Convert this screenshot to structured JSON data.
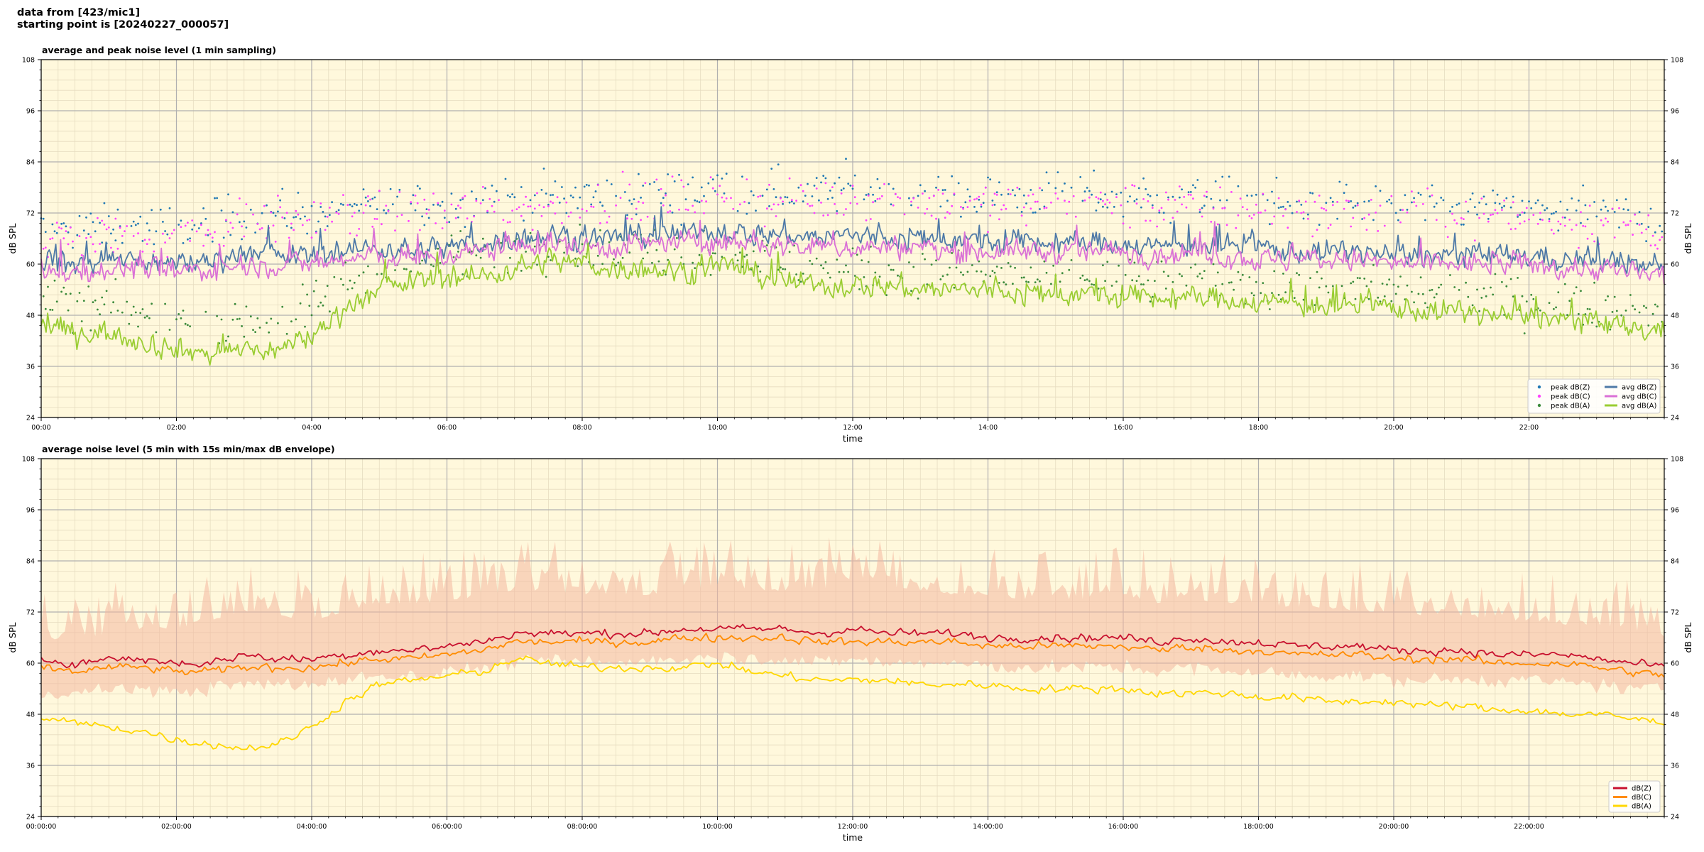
{
  "header": {
    "line1": "data from [423/mic1]",
    "line2": "starting point is [20240227_000057]"
  },
  "colors": {
    "plot_bg": "#fff8dc",
    "grid_major": "#b0b0b0",
    "grid_minor": "#e6dcc0",
    "peak_z": "#1f77b4",
    "peak_c": "#ff40ff",
    "peak_a": "#3a8a3a",
    "avg_z": "#4e79a7",
    "avg_c": "#da70d6",
    "avg_a": "#9acd32",
    "z": "#c8102e",
    "c": "#ff8c00",
    "a": "#ffd700",
    "envelope": "#f4b8a0"
  },
  "chart_data": [
    {
      "type": "line",
      "title": "average and peak noise level (1 min sampling)",
      "xlabel": "time",
      "ylabel": "dB SPL",
      "ylabel_right": "dB SPL",
      "xlim_hours": [
        0,
        24
      ],
      "ylim": [
        24,
        108
      ],
      "yticks": [
        "24",
        "36",
        "48",
        "60",
        "72",
        "84",
        "96",
        "108"
      ],
      "xticks": [
        "00:00",
        "02:00",
        "04:00",
        "06:00",
        "08:00",
        "10:00",
        "12:00",
        "14:00",
        "16:00",
        "18:00",
        "20:00",
        "22:00"
      ],
      "grid": true,
      "legend_position": "bottom-right",
      "legend": [
        {
          "label": "peak dB(Z)",
          "style": "dot",
          "color": "#1f77b4"
        },
        {
          "label": "peak dB(C)",
          "style": "dot",
          "color": "#ff40ff"
        },
        {
          "label": "peak dB(A)",
          "style": "dot",
          "color": "#3a8a3a"
        },
        {
          "label": "avg dB(Z)",
          "style": "line",
          "color": "#4e79a7"
        },
        {
          "label": "avg dB(C)",
          "style": "line",
          "color": "#da70d6"
        },
        {
          "label": "avg dB(A)",
          "style": "line",
          "color": "#9acd32"
        }
      ],
      "x_hours": [
        0,
        0.5,
        1,
        1.5,
        2,
        2.5,
        3,
        3.5,
        4,
        4.5,
        5,
        5.5,
        6,
        6.5,
        7,
        7.5,
        8,
        8.5,
        9,
        9.5,
        10,
        10.5,
        11,
        11.5,
        12,
        12.5,
        13,
        13.5,
        14,
        14.5,
        15,
        15.5,
        16,
        16.5,
        17,
        17.5,
        18,
        18.5,
        19,
        19.5,
        20,
        20.5,
        21,
        21.5,
        22,
        22.5,
        23,
        23.5,
        24
      ],
      "series": [
        {
          "name": "avg dB(Z)",
          "style": "line",
          "color": "#4e79a7",
          "values": [
            61,
            60,
            61,
            61,
            60,
            61,
            63,
            62,
            62,
            63,
            64,
            63,
            64,
            65,
            66,
            67,
            66,
            66,
            67,
            67,
            68,
            67,
            67,
            66,
            67,
            66,
            66,
            66,
            65,
            65,
            65,
            65,
            65,
            64,
            65,
            64,
            64,
            63,
            63,
            63,
            62,
            62,
            62,
            62,
            62,
            61,
            61,
            60,
            59
          ]
        },
        {
          "name": "avg dB(C)",
          "style": "line",
          "color": "#da70d6",
          "values": [
            59,
            58,
            59,
            59,
            58,
            59,
            60,
            60,
            60,
            61,
            62,
            61,
            62,
            63,
            64,
            65,
            64,
            64,
            65,
            65,
            65,
            65,
            64,
            64,
            64,
            64,
            64,
            63,
            63,
            63,
            63,
            63,
            63,
            62,
            63,
            62,
            61,
            61,
            61,
            61,
            60,
            60,
            60,
            60,
            60,
            59,
            59,
            58,
            57
          ]
        },
        {
          "name": "avg dB(A)",
          "style": "line",
          "color": "#9acd32",
          "values": [
            46,
            44,
            44,
            42,
            40,
            39,
            40,
            40,
            43,
            50,
            54,
            56,
            57,
            57,
            59,
            61,
            60,
            59,
            59,
            58,
            60,
            58,
            56,
            55,
            55,
            55,
            54,
            54,
            54,
            53,
            53,
            53,
            52,
            52,
            52,
            52,
            51,
            51,
            50,
            50,
            50,
            49,
            49,
            48,
            48,
            47,
            46,
            45,
            44
          ]
        },
        {
          "name": "peak dB(Z)",
          "style": "dots",
          "color": "#1f77b4",
          "values": [
            68,
            68,
            69,
            69,
            68,
            70,
            72,
            72,
            72,
            73,
            74,
            74,
            74,
            75,
            76,
            76,
            76,
            76,
            76,
            77,
            78,
            77,
            77,
            77,
            78,
            77,
            77,
            76,
            76,
            76,
            76,
            76,
            76,
            75,
            76,
            75,
            75,
            74,
            74,
            74,
            73,
            73,
            73,
            73,
            73,
            72,
            72,
            71,
            70
          ]
        },
        {
          "name": "peak dB(C)",
          "style": "dots",
          "color": "#ff40ff",
          "values": [
            66,
            66,
            67,
            67,
            66,
            68,
            70,
            70,
            70,
            71,
            72,
            72,
            72,
            73,
            74,
            74,
            74,
            74,
            74,
            75,
            76,
            75,
            75,
            75,
            76,
            75,
            75,
            74,
            74,
            74,
            74,
            74,
            74,
            73,
            74,
            73,
            73,
            72,
            72,
            72,
            71,
            71,
            71,
            71,
            71,
            70,
            70,
            69,
            68
          ]
        },
        {
          "name": "peak dB(A)",
          "style": "dots",
          "color": "#3a8a3a",
          "values": [
            52,
            50,
            50,
            48,
            47,
            46,
            47,
            47,
            50,
            56,
            59,
            61,
            62,
            62,
            64,
            65,
            64,
            63,
            63,
            62,
            64,
            62,
            60,
            59,
            59,
            59,
            58,
            58,
            58,
            57,
            57,
            57,
            56,
            56,
            56,
            56,
            55,
            55,
            54,
            54,
            54,
            53,
            53,
            52,
            52,
            51,
            51,
            50,
            49
          ]
        }
      ]
    },
    {
      "type": "line",
      "title": "average noise level (5 min with 15s min/max dB envelope)",
      "xlabel": "time",
      "ylabel": "dB SPL",
      "ylabel_right": "dB SPL",
      "xlim_hours": [
        0,
        24
      ],
      "ylim": [
        24,
        108
      ],
      "yticks": [
        "24",
        "36",
        "48",
        "60",
        "72",
        "84",
        "96",
        "108"
      ],
      "xticks": [
        "00:00:00",
        "02:00:00",
        "04:00:00",
        "06:00:00",
        "08:00:00",
        "10:00:00",
        "12:00:00",
        "14:00:00",
        "16:00:00",
        "18:00:00",
        "20:00:00",
        "22:00:00"
      ],
      "grid": true,
      "legend_position": "bottom-right",
      "legend": [
        {
          "label": "dB(Z)",
          "style": "line",
          "color": "#c8102e"
        },
        {
          "label": "dB(C)",
          "style": "line",
          "color": "#ff8c00"
        },
        {
          "label": "dB(A)",
          "style": "line",
          "color": "#ffd700"
        }
      ],
      "x_hours": [
        0,
        0.5,
        1,
        1.5,
        2,
        2.5,
        3,
        3.5,
        4,
        4.5,
        5,
        5.5,
        6,
        6.5,
        7,
        7.5,
        8,
        8.5,
        9,
        9.5,
        10,
        10.5,
        11,
        11.5,
        12,
        12.5,
        13,
        13.5,
        14,
        14.5,
        15,
        15.5,
        16,
        16.5,
        17,
        17.5,
        18,
        18.5,
        19,
        19.5,
        20,
        20.5,
        21,
        21.5,
        22,
        22.5,
        23,
        23.5,
        24
      ],
      "envelope": {
        "color": "#f4b8a0",
        "min": [
          53,
          53,
          54,
          54,
          53,
          54,
          55,
          55,
          55,
          56,
          57,
          57,
          58,
          59,
          60,
          61,
          60,
          60,
          61,
          61,
          62,
          61,
          61,
          60,
          61,
          60,
          60,
          60,
          59,
          59,
          59,
          59,
          59,
          58,
          59,
          58,
          58,
          57,
          57,
          57,
          56,
          56,
          56,
          56,
          56,
          55,
          55,
          54,
          54
        ],
        "max": [
          72,
          71,
          73,
          74,
          74,
          76,
          78,
          77,
          76,
          78,
          80,
          80,
          80,
          82,
          83,
          83,
          82,
          82,
          82,
          83,
          84,
          83,
          83,
          83,
          86,
          84,
          83,
          82,
          82,
          81,
          81,
          81,
          82,
          80,
          81,
          80,
          80,
          79,
          79,
          78,
          78,
          77,
          77,
          76,
          76,
          75,
          75,
          74,
          72
        ]
      },
      "series": [
        {
          "name": "dB(Z)",
          "style": "line",
          "color": "#c8102e",
          "values": [
            61,
            60,
            61,
            61,
            60,
            60,
            62,
            61,
            61,
            62,
            63,
            63,
            64,
            65,
            67,
            67,
            67,
            67,
            67,
            68,
            68,
            68,
            68,
            67,
            68,
            67,
            67,
            67,
            66,
            66,
            66,
            66,
            66,
            65,
            66,
            65,
            65,
            64,
            64,
            64,
            63,
            63,
            63,
            62,
            62,
            62,
            61,
            60,
            59
          ]
        },
        {
          "name": "dB(C)",
          "style": "line",
          "color": "#ff8c00",
          "values": [
            59,
            58,
            59,
            59,
            58,
            58,
            59,
            59,
            59,
            60,
            61,
            61,
            62,
            63,
            65,
            65,
            65,
            65,
            65,
            66,
            66,
            66,
            66,
            65,
            65,
            65,
            65,
            65,
            64,
            64,
            64,
            64,
            64,
            63,
            64,
            63,
            63,
            62,
            62,
            62,
            61,
            61,
            61,
            60,
            60,
            60,
            59,
            58,
            57
          ]
        },
        {
          "name": "dB(A)",
          "style": "line",
          "color": "#ffd700",
          "values": [
            47,
            46,
            45,
            44,
            42,
            41,
            40,
            41,
            45,
            51,
            55,
            56,
            57,
            58,
            61,
            60,
            59,
            59,
            59,
            59,
            60,
            58,
            57,
            56,
            56,
            56,
            55,
            55,
            55,
            54,
            54,
            54,
            54,
            53,
            53,
            53,
            52,
            52,
            51,
            51,
            51,
            50,
            50,
            49,
            49,
            48,
            48,
            47,
            46
          ]
        }
      ]
    }
  ]
}
